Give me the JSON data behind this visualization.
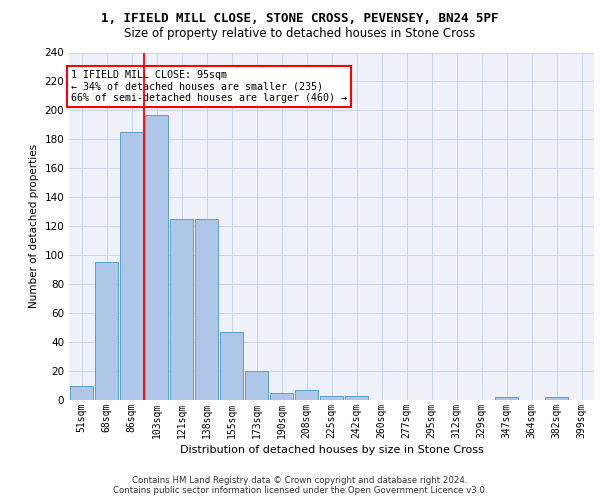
{
  "title1": "1, IFIELD MILL CLOSE, STONE CROSS, PEVENSEY, BN24 5PF",
  "title2": "Size of property relative to detached houses in Stone Cross",
  "xlabel": "Distribution of detached houses by size in Stone Cross",
  "ylabel": "Number of detached properties",
  "bar_color": "#aec6e8",
  "bar_edge_color": "#5a9fd4",
  "categories": [
    "51sqm",
    "68sqm",
    "86sqm",
    "103sqm",
    "121sqm",
    "138sqm",
    "155sqm",
    "173sqm",
    "190sqm",
    "208sqm",
    "225sqm",
    "242sqm",
    "260sqm",
    "277sqm",
    "295sqm",
    "312sqm",
    "329sqm",
    "347sqm",
    "364sqm",
    "382sqm",
    "399sqm"
  ],
  "values": [
    10,
    95,
    185,
    197,
    125,
    125,
    47,
    20,
    5,
    7,
    3,
    3,
    0,
    0,
    0,
    0,
    0,
    2,
    0,
    2,
    0
  ],
  "ylim": [
    0,
    240
  ],
  "yticks": [
    0,
    20,
    40,
    60,
    80,
    100,
    120,
    140,
    160,
    180,
    200,
    220,
    240
  ],
  "red_line_x": 2.5,
  "annotation_text": "1 IFIELD MILL CLOSE: 95sqm\n← 34% of detached houses are smaller (235)\n66% of semi-detached houses are larger (460) →",
  "annotation_box_color": "white",
  "annotation_border_color": "red",
  "footer1": "Contains HM Land Registry data © Crown copyright and database right 2024.",
  "footer2": "Contains public sector information licensed under the Open Government Licence v3.0.",
  "background_color": "#eef2f8",
  "plot_background": "white",
  "grid_color": "#c8d4e8"
}
